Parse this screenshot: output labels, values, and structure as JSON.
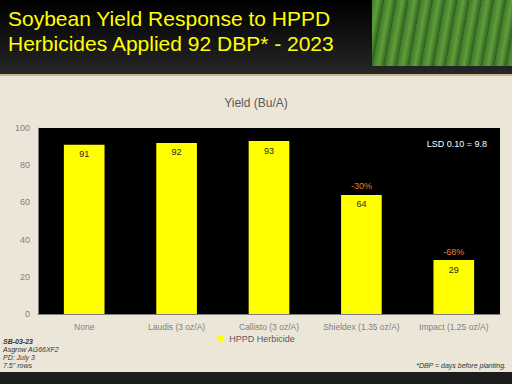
{
  "header": {
    "title": "Soybean Yield Response to HPPD Herbicides Applied 92 DBP* - 2023"
  },
  "notes": [
    "SB-03-23",
    "Asgrow AG66XF2",
    "PD: July 3",
    "7.5\" rows"
  ],
  "footnote": "*DBP = days before planting.",
  "chart_data": {
    "type": "bar",
    "title": "Yield (Bu/A)",
    "categories": [
      "None",
      "Laudis (3 oz/A)",
      "Callisto (3 oz/A)",
      "Shieldex (1.35 oz/A)",
      "Impact (1.25 oz/A)"
    ],
    "series": [
      {
        "name": "HPPD Herbicide",
        "color": "#ffff00",
        "values": [
          91,
          92,
          93,
          64,
          29
        ]
      }
    ],
    "ylim": [
      0,
      100
    ],
    "yticks": [
      0,
      20,
      40,
      60,
      80,
      100
    ],
    "grid": false,
    "legend": "bottom",
    "data_labels": true,
    "annotations": [
      {
        "text": "LSD 0.10 = 9.8"
      },
      {
        "text": "-30%",
        "category": "Shieldex (1.35 oz/A)"
      },
      {
        "text": "-68%",
        "category": "Impact (1.25 oz/A)"
      }
    ]
  }
}
